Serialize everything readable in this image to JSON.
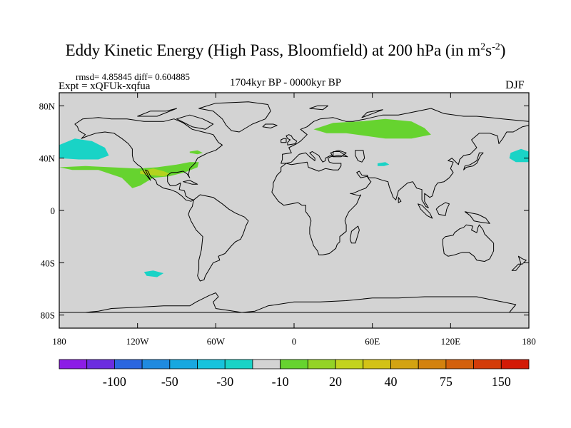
{
  "title": {
    "text": "Eddy Kinetic Energy (High Pass, Bloomfield) at 200 hPa (in m",
    "unit_sup1": "2",
    "unit_s": "s",
    "unit_sup2": "-2",
    "close": ")"
  },
  "stats": "rmsd= 4.85845  diff= 0.604885",
  "experiment": "Expt = xQFUk-xqfua",
  "period": "1704kyr BP - 0000kyr BP",
  "season": "DJF",
  "map": {
    "projection": "cylindrical equidistant",
    "lon_range": [
      -180,
      180
    ],
    "lat_range": [
      -90,
      90
    ],
    "background_color": "#d3d3d3",
    "coastline_color": "#000000",
    "y_ticks": [
      {
        "lat": 80,
        "label": "80N"
      },
      {
        "lat": 40,
        "label": "40N"
      },
      {
        "lat": 0,
        "label": "0"
      },
      {
        "lat": -40,
        "label": "40S"
      },
      {
        "lat": -80,
        "label": "80S"
      }
    ],
    "x_ticks": [
      {
        "lon": -180,
        "label": "180"
      },
      {
        "lon": -120,
        "label": "120W"
      },
      {
        "lon": -60,
        "label": "60W"
      },
      {
        "lon": 0,
        "label": "0"
      },
      {
        "lon": 60,
        "label": "60E"
      },
      {
        "lon": 120,
        "label": "120E"
      },
      {
        "lon": 180,
        "label": "180"
      }
    ],
    "anomalies": [
      {
        "name": "north-pacific-negative",
        "color": "#19d3c6",
        "points": [
          [
            -180,
            50
          ],
          [
            -168,
            55
          ],
          [
            -155,
            53
          ],
          [
            -145,
            48
          ],
          [
            -142,
            42
          ],
          [
            -150,
            39
          ],
          [
            -165,
            39
          ],
          [
            -180,
            40
          ]
        ]
      },
      {
        "name": "east-pacific-negative",
        "color": "#19d3c6",
        "points": [
          [
            180,
            45
          ],
          [
            174,
            47
          ],
          [
            166,
            44
          ],
          [
            165,
            40
          ],
          [
            170,
            37
          ],
          [
            180,
            37
          ]
        ]
      },
      {
        "name": "north-pacific-positive",
        "color": "#66d32f",
        "points": [
          [
            -180,
            33
          ],
          [
            -160,
            34
          ],
          [
            -140,
            33
          ],
          [
            -120,
            32
          ],
          [
            -105,
            33
          ],
          [
            -90,
            35
          ],
          [
            -80,
            37
          ],
          [
            -73,
            37
          ],
          [
            -74,
            33
          ],
          [
            -84,
            29
          ],
          [
            -96,
            26
          ],
          [
            -108,
            25
          ],
          [
            -118,
            19
          ],
          [
            -124,
            17
          ],
          [
            -132,
            25
          ],
          [
            -150,
            31
          ],
          [
            -170,
            31
          ]
        ]
      },
      {
        "name": "north-atlantic-positive",
        "color": "#66d32f",
        "points": [
          [
            -80,
            45
          ],
          [
            -74,
            46
          ],
          [
            -70,
            44
          ],
          [
            -74,
            43
          ],
          [
            -80,
            44
          ]
        ]
      },
      {
        "name": "subtropical-jet-maximum",
        "color": "#b3d31e",
        "points": [
          [
            -118,
            30
          ],
          [
            -108,
            32
          ],
          [
            -100,
            30
          ],
          [
            -95,
            28
          ],
          [
            -100,
            26
          ],
          [
            -110,
            27
          ],
          [
            -118,
            28
          ]
        ]
      },
      {
        "name": "central-asia-positive",
        "color": "#66d32f",
        "points": [
          [
            15,
            62
          ],
          [
            30,
            67
          ],
          [
            50,
            68
          ],
          [
            70,
            70
          ],
          [
            90,
            68
          ],
          [
            100,
            63
          ],
          [
            105,
            58
          ],
          [
            90,
            55
          ],
          [
            70,
            55
          ],
          [
            55,
            57
          ],
          [
            40,
            59
          ],
          [
            25,
            59
          ]
        ]
      },
      {
        "name": "himalaya-negative",
        "color": "#19d3c6",
        "points": [
          [
            64,
            36
          ],
          [
            70,
            37
          ],
          [
            73,
            35
          ],
          [
            69,
            34
          ],
          [
            64,
            34
          ]
        ]
      },
      {
        "name": "south-pacific-negative",
        "color": "#19d3c6",
        "points": [
          [
            -115,
            -47
          ],
          [
            -108,
            -46
          ],
          [
            -100,
            -48
          ],
          [
            -105,
            -51
          ],
          [
            -113,
            -50
          ]
        ]
      }
    ]
  },
  "colorbar": {
    "colors": [
      "#8c1ce6",
      "#6b2de0",
      "#2b66e0",
      "#1f8ae0",
      "#18a8e0",
      "#17c3dc",
      "#19d3c6",
      "#d3d3d3",
      "#66d32f",
      "#94d326",
      "#c3d31e",
      "#d3c216",
      "#d3a312",
      "#d3820f",
      "#d3600c",
      "#d33c09",
      "#d31a06"
    ],
    "labels": [
      "-100",
      "-50",
      "-30",
      "-10",
      "20",
      "40",
      "75",
      "150"
    ]
  }
}
